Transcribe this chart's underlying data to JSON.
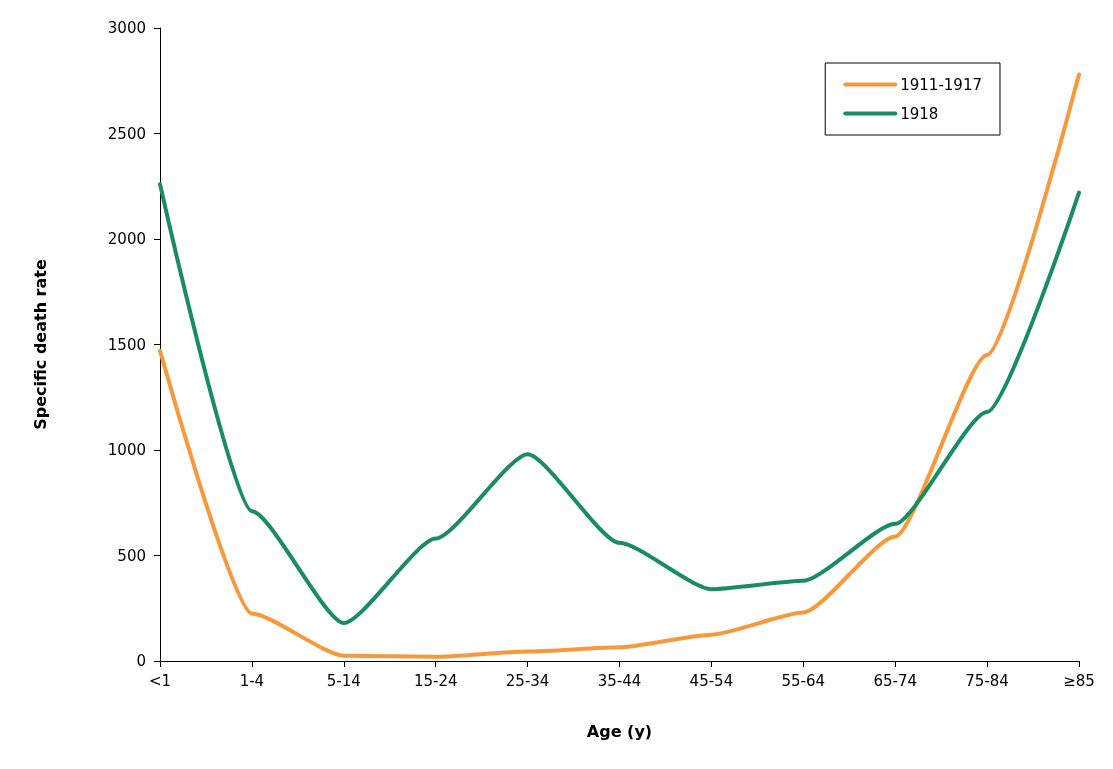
{
  "chart_data": {
    "type": "line",
    "xlabel": "Age (y)",
    "ylabel": "Specific death rate",
    "categories": [
      "<1",
      "1-4",
      "5-14",
      "15-24",
      "25-34",
      "35-44",
      "45-54",
      "55-64",
      "65-74",
      "75-84",
      "≥85"
    ],
    "series": [
      {
        "name": "1911-1917",
        "color": "#f7993a",
        "values": [
          1470,
          225,
          25,
          20,
          45,
          65,
          125,
          230,
          590,
          1450,
          2780
        ]
      },
      {
        "name": "1918",
        "color": "#1a8c63",
        "values": [
          2260,
          710,
          180,
          580,
          980,
          560,
          340,
          380,
          650,
          1180,
          2220
        ]
      }
    ],
    "ylim": [
      0,
      3000
    ],
    "yticks": [
      0,
      500,
      1000,
      1500,
      2000,
      2500,
      3000
    ],
    "grid": false,
    "legend": "top right",
    "marker": "none",
    "line_style": "solid"
  }
}
